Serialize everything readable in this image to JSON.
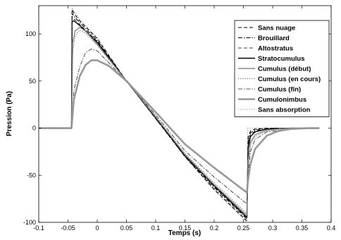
{
  "chart_data": {
    "type": "line",
    "title": "",
    "xlabel": "Temps (s)",
    "ylabel": "Pression (Pa)",
    "xlim": [
      -0.1,
      0.4
    ],
    "ylim": [
      -100,
      130
    ],
    "xticks": [
      -0.1,
      -0.05,
      0,
      0.05,
      0.1,
      0.15,
      0.2,
      0.25,
      0.3,
      0.35,
      0.4
    ],
    "xtick_labels": [
      "-0.1",
      "-0.05",
      "0",
      "0.05",
      "0.1",
      "0.15",
      "0.2",
      "0.25",
      "0.3",
      "0.35",
      "0.4"
    ],
    "yticks": [
      -100,
      -50,
      0,
      50,
      100
    ],
    "ytick_labels": [
      "-100",
      "-50",
      "0",
      "50",
      "100"
    ],
    "grid": false,
    "legend_position": "top-right",
    "series": [
      {
        "name": "Sans nuage",
        "color": "#000000",
        "style": "dashed",
        "width": 1.1,
        "x": [
          -0.1,
          -0.044,
          -0.043,
          -0.04,
          -0.03,
          0.0,
          0.05,
          0.1,
          0.15,
          0.2,
          0.255,
          0.256,
          0.258,
          0.262,
          0.27,
          0.29,
          0.33,
          0.38
        ],
        "y": [
          0,
          0,
          126,
          122,
          114,
          95,
          50,
          10,
          -30,
          -65,
          -98,
          -98,
          -10,
          -3,
          -1,
          0,
          0,
          0
        ]
      },
      {
        "name": "Brouillard",
        "color": "#000000",
        "style": "dashdot",
        "width": 1.0,
        "x": [
          -0.1,
          -0.044,
          -0.043,
          -0.04,
          -0.03,
          0.0,
          0.05,
          0.1,
          0.15,
          0.2,
          0.255,
          0.256,
          0.258,
          0.262,
          0.27,
          0.29,
          0.33,
          0.38
        ],
        "y": [
          0,
          0,
          122,
          119,
          112,
          93,
          50,
          10,
          -30,
          -63,
          -96,
          -96,
          -14,
          -5,
          -2,
          0,
          0,
          0
        ]
      },
      {
        "name": "Altostratus",
        "color": "#000000",
        "style": "dashed",
        "width": 0.8,
        "x": [
          -0.1,
          -0.044,
          -0.043,
          -0.04,
          -0.03,
          0.0,
          0.05,
          0.1,
          0.15,
          0.2,
          0.255,
          0.256,
          0.258,
          0.262,
          0.27,
          0.29,
          0.33,
          0.38
        ],
        "y": [
          0,
          0,
          118,
          116,
          110,
          92,
          50,
          11,
          -29,
          -62,
          -95,
          -95,
          -18,
          -7,
          -3,
          -1,
          0,
          0
        ]
      },
      {
        "name": "Stratocumulus",
        "color": "#000000",
        "style": "solid",
        "width": 1.4,
        "x": [
          -0.1,
          -0.044,
          -0.043,
          -0.04,
          -0.03,
          0.0,
          0.05,
          0.1,
          0.15,
          0.2,
          0.255,
          0.256,
          0.258,
          0.262,
          0.27,
          0.29,
          0.33,
          0.38
        ],
        "y": [
          0,
          0,
          113,
          114,
          109,
          91,
          50,
          11,
          -29,
          -61,
          -94,
          -94,
          -22,
          -9,
          -4,
          -1,
          0,
          0
        ]
      },
      {
        "name": "Cumulus (début)",
        "color": "#888888",
        "style": "solid",
        "width": 1.4,
        "x": [
          -0.1,
          -0.044,
          -0.042,
          -0.038,
          -0.03,
          -0.02,
          0.0,
          0.05,
          0.1,
          0.15,
          0.2,
          0.255,
          0.256,
          0.258,
          0.262,
          0.27,
          0.29,
          0.33,
          0.38
        ],
        "y": [
          0,
          0,
          90,
          103,
          107,
          103,
          89,
          50,
          12,
          -28,
          -60,
          -92,
          -92,
          -35,
          -15,
          -7,
          -2,
          0,
          0
        ]
      },
      {
        "name": "Cumulus (en cours)",
        "color": "#555555",
        "style": "dotted",
        "width": 1.0,
        "x": [
          -0.1,
          -0.044,
          -0.042,
          -0.038,
          -0.03,
          -0.02,
          0.0,
          0.05,
          0.1,
          0.15,
          0.2,
          0.255,
          0.256,
          0.258,
          0.262,
          0.27,
          0.29,
          0.33,
          0.38
        ],
        "y": [
          0,
          0,
          80,
          98,
          104,
          101,
          88,
          50,
          12,
          -27,
          -58,
          -90,
          -90,
          -40,
          -18,
          -9,
          -3,
          0,
          0
        ]
      },
      {
        "name": "Cumulus (fin)",
        "color": "#222222",
        "style": "dashdot",
        "width": 0.8,
        "x": [
          -0.1,
          -0.044,
          -0.04,
          -0.03,
          -0.02,
          -0.01,
          0.0,
          0.05,
          0.1,
          0.15,
          0.2,
          0.255,
          0.256,
          0.258,
          0.262,
          0.27,
          0.29,
          0.33,
          0.38
        ],
        "y": [
          0,
          0,
          40,
          65,
          80,
          84,
          82,
          50,
          14,
          -24,
          -52,
          -80,
          -80,
          -48,
          -25,
          -12,
          -4,
          -1,
          0
        ]
      },
      {
        "name": "Cumulonimbus",
        "color": "#999999",
        "style": "solid",
        "width": 2.6,
        "x": [
          -0.1,
          -0.044,
          -0.04,
          -0.03,
          -0.02,
          -0.01,
          0.0,
          0.02,
          0.05,
          0.1,
          0.15,
          0.2,
          0.255,
          0.256,
          0.258,
          0.262,
          0.27,
          0.29,
          0.31,
          0.33,
          0.36,
          0.38
        ],
        "y": [
          0,
          0,
          30,
          55,
          67,
          72,
          72,
          66,
          50,
          17,
          -17,
          -42,
          -68,
          -68,
          -55,
          -38,
          -22,
          -8,
          -3,
          -1,
          0,
          0
        ]
      },
      {
        "name": "Sans absorption",
        "color": "#666666",
        "style": "dotted",
        "width": 0.8,
        "x": [
          -0.1,
          -0.044,
          -0.043,
          -0.04,
          -0.03,
          0.0,
          0.05,
          0.1,
          0.15,
          0.2,
          0.255,
          0.256,
          0.257,
          0.26,
          0.27,
          0.3,
          0.38
        ],
        "y": [
          0,
          0,
          128,
          124,
          116,
          96,
          50,
          10,
          -31,
          -66,
          -99,
          -99,
          0,
          0,
          0,
          0,
          0
        ]
      }
    ]
  }
}
